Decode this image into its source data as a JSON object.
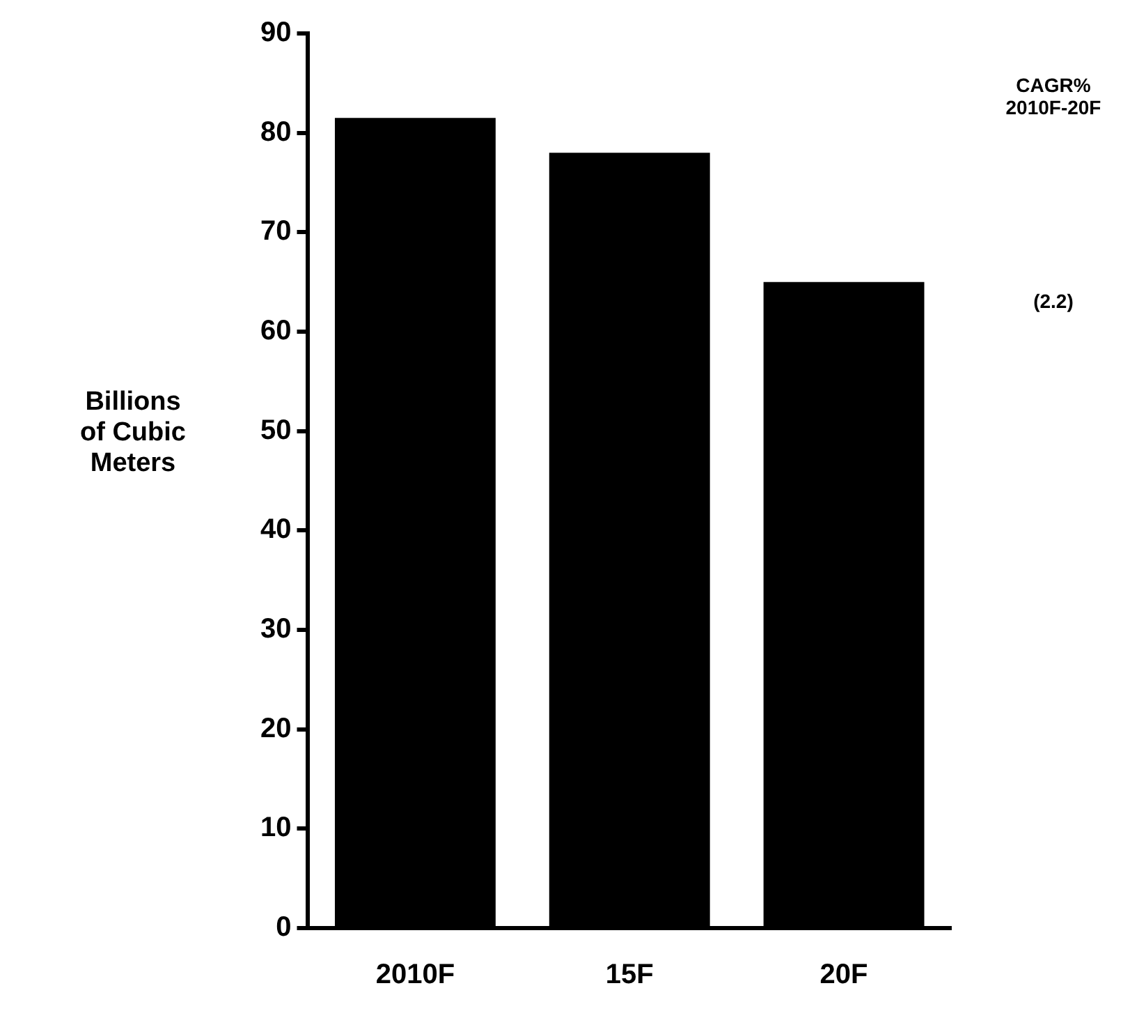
{
  "chart_data": {
    "type": "bar",
    "ylabel": "Billions of Cubic Meters",
    "categories": [
      "2010F",
      "15F",
      "20F"
    ],
    "values": [
      81.5,
      78,
      65
    ],
    "color": "#000000",
    "ylim": [
      0,
      90
    ],
    "yticks": [
      0,
      10,
      20,
      30,
      40,
      50,
      60,
      70,
      80,
      90
    ],
    "grid": false,
    "annotations": [
      "CAGR%\n2010F-20F",
      "(2.2)"
    ]
  }
}
